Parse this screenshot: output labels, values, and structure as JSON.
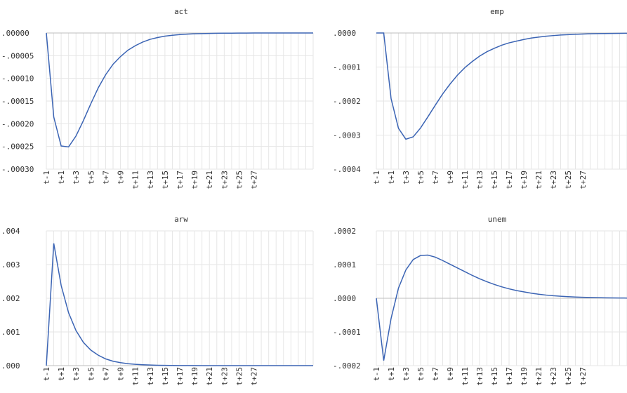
{
  "chart_data": [
    {
      "type": "line",
      "title": "act",
      "ylim": [
        -0.0003,
        0.0
      ],
      "y_ticks": [
        ".00000",
        "-.00005",
        "-.00010",
        "-.00015",
        "-.00020",
        "-.00025",
        "-.00030"
      ],
      "y_tick_values": [
        0.0,
        -5e-05,
        -0.0001,
        -0.00015,
        -0.0002,
        -0.00025,
        -0.0003
      ],
      "x_tick_labels": [
        "t-1",
        "t+1",
        "t+3",
        "t+5",
        "t+7",
        "t+9",
        "t+11",
        "t+13",
        "t+15",
        "t+17",
        "t+19",
        "t+21",
        "t+23",
        "t+25",
        "t+27"
      ],
      "series": [
        {
          "values": [
            0.0,
            -0.000185,
            -0.000249,
            -0.000251,
            -0.000227,
            -0.000193,
            -0.000156,
            -0.000121,
            -9.2e-05,
            -6.9e-05,
            -5.2e-05,
            -3.8e-05,
            -2.8e-05,
            -2e-05,
            -1.4e-05,
            -1e-05,
            -7e-06,
            -5e-06,
            -3.5e-06,
            -2.5e-06,
            -1.8e-06,
            -1.3e-06,
            -9e-07,
            -6e-07,
            -4e-07,
            -3e-07,
            -2e-07,
            -1.5e-07,
            -1e-07,
            -7e-08,
            -5e-08,
            -3e-08,
            -2e-08,
            -1e-08,
            0.0,
            0.0,
            0.0,
            0.0,
            0.0,
            0.0
          ]
        }
      ]
    },
    {
      "type": "line",
      "title": "emp",
      "ylim": [
        -0.0004,
        0.0
      ],
      "y_ticks": [
        ".0000",
        "-.0001",
        "-.0002",
        "-.0003",
        "-.0004"
      ],
      "y_tick_values": [
        0.0,
        -0.0001,
        -0.0002,
        -0.0003,
        -0.0004
      ],
      "x_tick_labels": [
        "t-1",
        "t+1",
        "t+3",
        "t+5",
        "t+7",
        "t+9",
        "t+11",
        "t+13",
        "t+15",
        "t+17",
        "t+19",
        "t+21",
        "t+23",
        "t+25",
        "t+27"
      ],
      "series": [
        {
          "values": [
            0.0,
            0.0,
            -0.000193,
            -0.00028,
            -0.000312,
            -0.000305,
            -0.000279,
            -0.000246,
            -0.000212,
            -0.000179,
            -0.00015,
            -0.000124,
            -0.000102,
            -8.4e-05,
            -6.8e-05,
            -5.5e-05,
            -4.5e-05,
            -3.6e-05,
            -2.9e-05,
            -2.4e-05,
            -1.9e-05,
            -1.5e-05,
            -1.2e-05,
            -9.5e-06,
            -7.6e-06,
            -6e-06,
            -4.8e-06,
            -3.8e-06,
            -3e-06,
            -2.4e-06,
            -1.9e-06,
            -1.5e-06,
            -1.2e-06,
            -9e-07,
            -7e-07,
            -6e-07,
            -5e-07,
            -4e-07,
            -3e-07,
            -2e-07,
            -2e-07
          ]
        }
      ]
    },
    {
      "type": "line",
      "title": "arw",
      "ylim": [
        0.0,
        0.004
      ],
      "y_ticks": [
        ".004",
        ".003",
        ".002",
        ".001",
        ".000"
      ],
      "y_tick_values": [
        0.004,
        0.003,
        0.002,
        0.001,
        0.0
      ],
      "x_tick_labels": [
        "t-1",
        "t+1",
        "t+3",
        "t+5",
        "t+7",
        "t+9",
        "t+11",
        "t+13",
        "t+15",
        "t+17",
        "t+19",
        "t+21",
        "t+23",
        "t+25",
        "t+27"
      ],
      "series": [
        {
          "values": [
            0.0,
            0.00363,
            0.00238,
            0.00157,
            0.00104,
            0.00069,
            0.00046,
            0.00031,
            0.0002,
            0.00013,
            8.8e-05,
            5.8e-05,
            3.9e-05,
            2.6e-05,
            1.7e-05,
            1.1e-05,
            7.5e-06,
            5e-06,
            3.3e-06,
            2.2e-06,
            1.5e-06,
            1e-06,
            7e-07,
            4e-07,
            3e-07,
            2e-07,
            1e-07,
            1e-07,
            0.0,
            0.0,
            0.0,
            0.0,
            0.0,
            0.0,
            0.0,
            0.0,
            0.0,
            0.0,
            0.0,
            0.0
          ]
        }
      ]
    },
    {
      "type": "line",
      "title": "unem",
      "ylim": [
        -0.0002,
        0.0002
      ],
      "y_ticks": [
        ".0002",
        ".0001",
        ".0000",
        "-.0001",
        "-.0002"
      ],
      "y_tick_values": [
        0.0002,
        0.0001,
        0.0,
        -0.0001,
        -0.0002
      ],
      "x_tick_labels": [
        "t-1",
        "t+1",
        "t+3",
        "t+5",
        "t+7",
        "t+9",
        "t+11",
        "t+13",
        "t+15",
        "t+17",
        "t+19",
        "t+21",
        "t+23",
        "t+25",
        "t+27"
      ],
      "series": [
        {
          "values": [
            0.0,
            -0.000185,
            -6e-05,
            3e-05,
            8.4e-05,
            0.000115,
            0.000127,
            0.000128,
            0.000122,
            0.000112,
            0.000101,
            9e-05,
            7.9e-05,
            6.8e-05,
            5.8e-05,
            4.9e-05,
            4.1e-05,
            3.4e-05,
            2.8e-05,
            2.3e-05,
            1.9e-05,
            1.5e-05,
            1.2e-05,
            9.5e-06,
            7.5e-06,
            6e-06,
            4.7e-06,
            3.7e-06,
            2.9e-06,
            2.3e-06,
            1.8e-06,
            1.4e-06,
            1.1e-06,
            8e-07,
            6e-07,
            5e-07,
            4e-07,
            3e-07,
            2e-07,
            2e-07
          ]
        }
      ]
    }
  ]
}
